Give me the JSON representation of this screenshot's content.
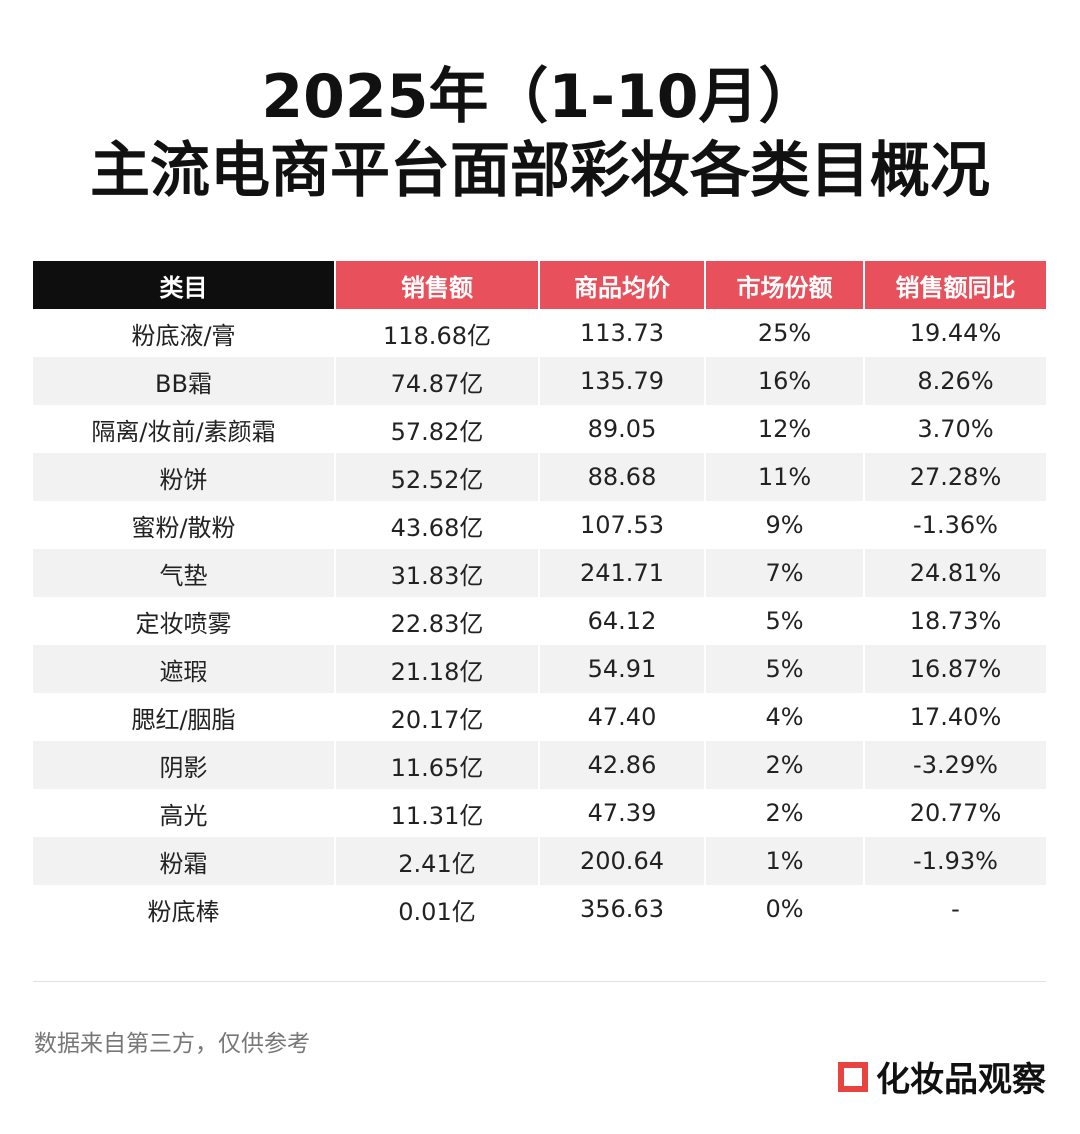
{
  "title": {
    "line1": "2025年（1-10月）",
    "line2": "主流电商平台面部彩妆各类目概况"
  },
  "table": {
    "headers": [
      "类目",
      "销售额",
      "商品均价",
      "市场份额",
      "销售额同比"
    ],
    "rows": [
      [
        "粉底液/膏",
        "118.68亿",
        "113.73",
        "25%",
        "19.44%"
      ],
      [
        "BB霜",
        "74.87亿",
        "135.79",
        "16%",
        "8.26%"
      ],
      [
        "隔离/妆前/素颜霜",
        "57.82亿",
        "89.05",
        "12%",
        "3.70%"
      ],
      [
        "粉饼",
        "52.52亿",
        "88.68",
        "11%",
        "27.28%"
      ],
      [
        "蜜粉/散粉",
        "43.68亿",
        "107.53",
        "9%",
        "-1.36%"
      ],
      [
        "气垫",
        "31.83亿",
        "241.71",
        "7%",
        "24.81%"
      ],
      [
        "定妆喷雾",
        "22.83亿",
        "64.12",
        "5%",
        "18.73%"
      ],
      [
        "遮瑕",
        "21.18亿",
        "54.91",
        "5%",
        "16.87%"
      ],
      [
        "腮红/胭脂",
        "20.17亿",
        "47.40",
        "4%",
        "17.40%"
      ],
      [
        "阴影",
        "11.65亿",
        "42.86",
        "2%",
        "-3.29%"
      ],
      [
        "高光",
        "11.31亿",
        "47.39",
        "2%",
        "20.77%"
      ],
      [
        "粉霜",
        "2.41亿",
        "200.64",
        "1%",
        "-1.93%"
      ],
      [
        "粉底棒",
        "0.01亿",
        "356.63",
        "0%",
        "-"
      ]
    ]
  },
  "footnote": "数据来自第三方，仅供参考",
  "brand": {
    "name": "化妆品观察",
    "icon": "square-logo-icon"
  },
  "colors": {
    "header_dark": "#0e0e0e",
    "header_accent": "#e8505b",
    "row_alt": "#f2f2f2",
    "brand_red": "#e8433f"
  }
}
